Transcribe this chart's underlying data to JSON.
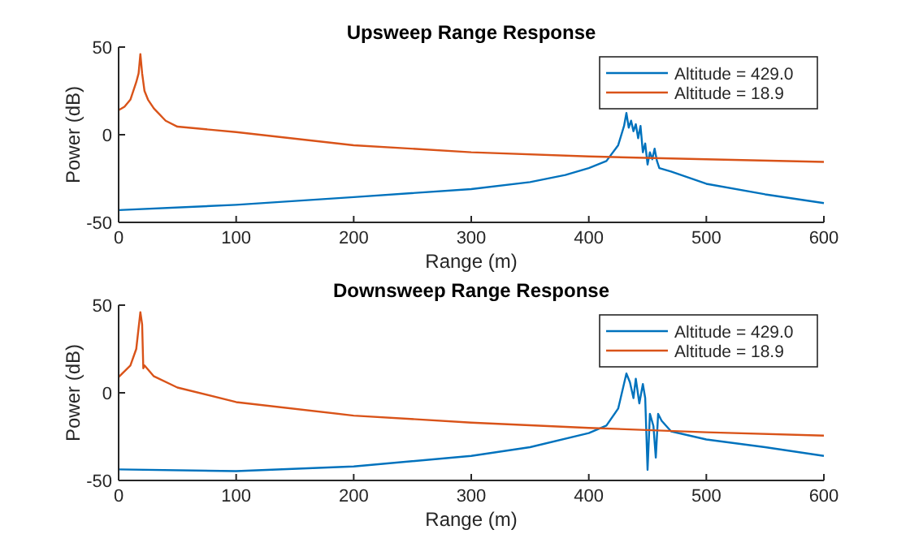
{
  "chart_data": [
    {
      "type": "line",
      "title": "Upsweep Range Response",
      "xlabel": "Range (m)",
      "ylabel": "Power (dB)",
      "xlim": [
        0,
        600
      ],
      "ylim": [
        -50,
        50
      ],
      "xticks": [
        0,
        100,
        200,
        300,
        400,
        500,
        600
      ],
      "yticks": [
        -50,
        0,
        50
      ],
      "legend": "top right",
      "grid": false,
      "series": [
        {
          "name": "Altitude = 429.0",
          "color": "#0072bd",
          "x": [
            0,
            100,
            200,
            300,
            350,
            380,
            400,
            415,
            425,
            430,
            432,
            434,
            436,
            438,
            440,
            442,
            444,
            446,
            448,
            450,
            452,
            454,
            456,
            458,
            460,
            470,
            500,
            550,
            600
          ],
          "values": [
            -43,
            -40,
            -35.6,
            -31,
            -27,
            -23,
            -19,
            -15,
            -6,
            5,
            12.4,
            4,
            8,
            2,
            6,
            -2,
            5,
            -10,
            -5,
            -17,
            -10,
            -14,
            -8,
            -15,
            -19,
            -21,
            -28,
            -34,
            -39
          ]
        },
        {
          "name": "Altitude = 18.9",
          "color": "#d95319",
          "x": [
            0,
            5,
            10,
            15,
            17,
            18.5,
            20,
            22,
            25,
            30,
            40,
            50,
            100,
            200,
            300,
            400,
            500,
            600
          ],
          "values": [
            14,
            16,
            20,
            30,
            35,
            46,
            35,
            25,
            20,
            15,
            8,
            4.6,
            1.5,
            -6,
            -10,
            -12.4,
            -14,
            -15.5
          ]
        }
      ]
    },
    {
      "type": "line",
      "title": "Downsweep Range Response",
      "xlabel": "Range (m)",
      "ylabel": "Power (dB)",
      "xlim": [
        0,
        600
      ],
      "ylim": [
        -50,
        50
      ],
      "xticks": [
        0,
        100,
        200,
        300,
        400,
        500,
        600
      ],
      "yticks": [
        -50,
        0,
        50
      ],
      "legend": "top right",
      "grid": false,
      "series": [
        {
          "name": "Altitude = 429.0",
          "color": "#0072bd",
          "x": [
            0,
            100,
            200,
            300,
            350,
            400,
            415,
            425,
            432,
            435,
            438,
            440,
            443,
            446,
            448,
            450,
            452,
            455,
            457,
            459,
            462,
            470,
            500,
            550,
            600
          ],
          "values": [
            -43.7,
            -44.7,
            -42,
            -36,
            -31,
            -23,
            -18.7,
            -9,
            11,
            6,
            -3,
            8,
            -6,
            5,
            -3,
            -44,
            -12,
            -19,
            -37,
            -12,
            -16,
            -22,
            -26.6,
            -31,
            -36
          ]
        },
        {
          "name": "Altitude = 18.9",
          "color": "#d95319",
          "x": [
            0,
            10,
            15,
            18.5,
            20,
            21,
            22,
            30,
            50,
            100,
            200,
            300,
            400,
            500,
            600
          ],
          "values": [
            9,
            15.6,
            25,
            46,
            39,
            14,
            15.6,
            9.4,
            3,
            -5.3,
            -13,
            -17,
            -20,
            -22.5,
            -24.4
          ]
        }
      ]
    }
  ]
}
